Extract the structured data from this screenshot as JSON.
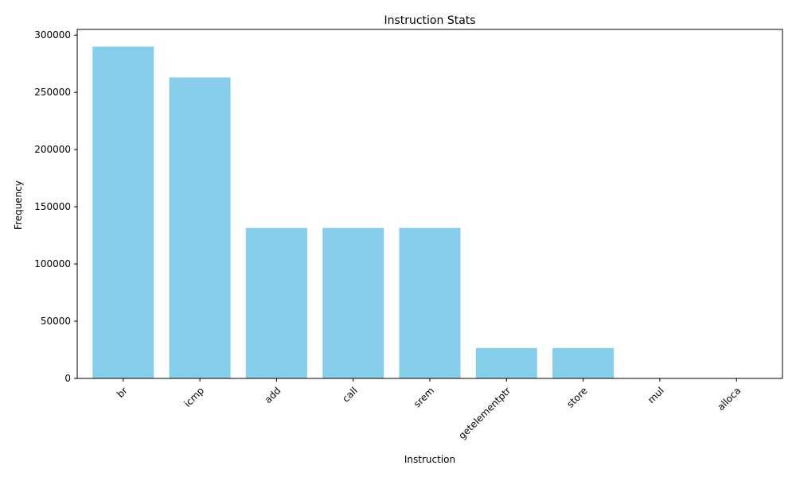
{
  "chart_data": {
    "type": "bar",
    "title": "Instruction Stats",
    "xlabel": "Instruction",
    "ylabel": "Frequency",
    "categories": [
      "br",
      "icmp",
      "add",
      "call",
      "srem",
      "getelementptr",
      "store",
      "mul",
      "alloca"
    ],
    "values": [
      290000,
      263000,
      131500,
      131500,
      131500,
      26500,
      26500,
      0,
      0
    ],
    "ylim": [
      0,
      305000
    ],
    "yticks": [
      0,
      50000,
      100000,
      150000,
      200000,
      250000,
      300000
    ],
    "bar_color": "#87ceeb",
    "grid": false,
    "legend": "none"
  }
}
